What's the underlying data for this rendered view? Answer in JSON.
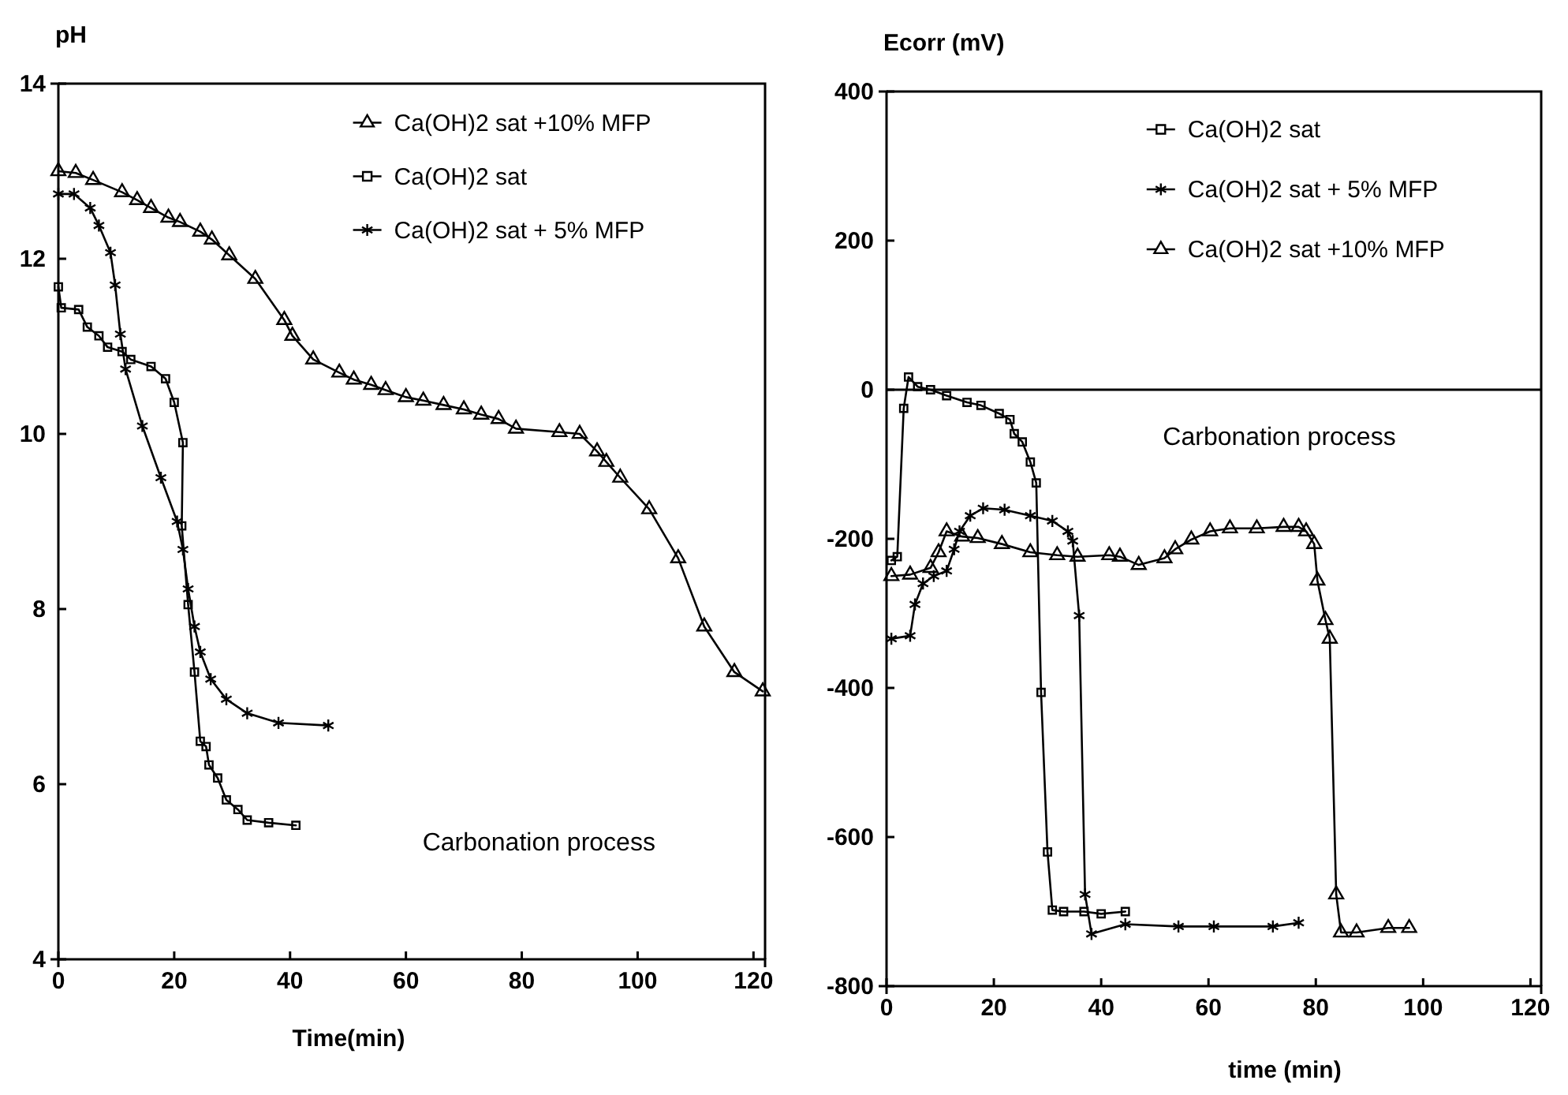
{
  "chart_data": [
    {
      "type": "line",
      "ylabel": "pH",
      "xlabel": "Time(min)",
      "xlim": [
        0,
        122
      ],
      "xticks": [
        0,
        20,
        40,
        60,
        80,
        100,
        120
      ],
      "ylim": [
        4,
        14
      ],
      "yticks": [
        4,
        6,
        8,
        10,
        12,
        14
      ],
      "legend": "top right",
      "grid": false,
      "line_style": "solid",
      "annotations": [
        "Carbonation process"
      ],
      "series": [
        {
          "name": "Ca(OH)2 sat +10% MFP",
          "color": "#000000",
          "marker": "triangle",
          "x": [
            0,
            3,
            6,
            11,
            13.6,
            16,
            19,
            21,
            24.5,
            26.5,
            29.5,
            34,
            39,
            40.4,
            44,
            48.5,
            51,
            54,
            56.5,
            60,
            63,
            66.5,
            70,
            73,
            76,
            79,
            86.5,
            90,
            93,
            94.6,
            97,
            102,
            107,
            111.5,
            116.7,
            121.6
          ],
          "values": [
            13.0,
            12.98,
            12.9,
            12.76,
            12.67,
            12.58,
            12.47,
            12.42,
            12.31,
            12.22,
            12.04,
            11.77,
            11.3,
            11.12,
            10.85,
            10.7,
            10.62,
            10.56,
            10.5,
            10.42,
            10.38,
            10.33,
            10.28,
            10.22,
            10.17,
            10.06,
            10.02,
            10.0,
            9.8,
            9.68,
            9.5,
            9.14,
            8.58,
            7.8,
            7.28,
            7.06
          ]
        },
        {
          "name": "Ca(OH)2 sat",
          "color": "#000000",
          "marker": "square",
          "x": [
            0,
            0.5,
            3.5,
            5,
            7,
            8.5,
            11,
            12.5,
            16,
            18.5,
            20,
            21.5,
            21.3,
            22.4,
            23.5,
            24.5,
            25.5,
            26,
            27.5,
            29,
            31,
            32.6,
            36.3,
            41
          ],
          "values": [
            11.68,
            11.44,
            11.42,
            11.22,
            11.12,
            10.99,
            10.94,
            10.85,
            10.77,
            10.63,
            10.36,
            9.9,
            8.95,
            8.05,
            7.28,
            6.49,
            6.43,
            6.22,
            6.07,
            5.82,
            5.71,
            5.59,
            5.56,
            5.53
          ]
        },
        {
          "name": "Ca(OH)2 sat + 5% MFP",
          "color": "#000000",
          "marker": "cross",
          "x": [
            0,
            2.7,
            5.5,
            7,
            9,
            9.8,
            10.7,
            11.6,
            14.5,
            17.7,
            20.5,
            21.5,
            22.4,
            23.5,
            24.5,
            26.3,
            29,
            32.6,
            38,
            46.6
          ],
          "values": [
            12.74,
            12.74,
            12.58,
            12.38,
            12.07,
            11.7,
            11.14,
            10.74,
            10.09,
            9.5,
            9.0,
            8.68,
            8.23,
            7.8,
            7.51,
            7.2,
            6.97,
            6.81,
            6.7,
            6.67
          ]
        }
      ]
    },
    {
      "type": "line",
      "ylabel": "Ecorr (mV)",
      "xlabel": "time (min)",
      "xlim": [
        0,
        122
      ],
      "xticks": [
        0,
        20,
        40,
        60,
        80,
        100,
        120
      ],
      "ylim": [
        -800,
        400
      ],
      "yticks": [
        -800,
        -600,
        -400,
        -200,
        0,
        200,
        400
      ],
      "legend": "top right",
      "grid": false,
      "line_style": "solid",
      "annotations": [
        "Carbonation process"
      ],
      "ref_lines": [
        {
          "axis": "y",
          "value": 0,
          "color": "#000000"
        }
      ],
      "series": [
        {
          "name": "Ca(OH)2 sat",
          "color": "#000000",
          "marker": "square",
          "x": [
            0.9,
            2,
            3.2,
            4.1,
            5.8,
            8.2,
            11.2,
            15,
            17.6,
            21,
            23,
            23.8,
            25.3,
            26.8,
            27.9,
            28.8,
            30,
            30.9,
            33,
            36.8,
            40,
            44.5
          ],
          "values": [
            -229,
            -224,
            -25,
            17,
            4,
            0,
            -8,
            -17,
            -21,
            -32,
            -40,
            -59,
            -70,
            -97,
            -125,
            -406,
            -620,
            -698,
            -700,
            -700,
            -703,
            -700
          ]
        },
        {
          "name": "Ca(OH)2 sat + 5% MFP",
          "color": "#000000",
          "marker": "cross",
          "x": [
            0.9,
            4.4,
            5.3,
            6.8,
            8.8,
            11.2,
            12.6,
            13.6,
            15.6,
            18,
            22,
            26.8,
            30.9,
            33.8,
            34.7,
            35.9,
            37,
            38.2,
            44.5,
            54.4,
            61,
            72,
            76.8
          ],
          "values": [
            -334,
            -330,
            -288,
            -260,
            -250,
            -243,
            -214,
            -190,
            -169,
            -159,
            -161,
            -169,
            -176,
            -190,
            -203,
            -303,
            -677,
            -730,
            -717,
            -720,
            -720,
            -720,
            -715
          ]
        },
        {
          "name": "Ca(OH)2 sat +10% MFP",
          "color": "#000000",
          "marker": "triangle",
          "x": [
            0.9,
            4.4,
            8.2,
            9.7,
            11.2,
            14.1,
            17,
            21.5,
            26.8,
            31.8,
            35.6,
            41.5,
            43.5,
            47,
            51.8,
            53.8,
            56.8,
            60.3,
            64,
            69,
            74,
            76.8,
            78.2,
            79.7,
            80.3,
            81.8,
            82.6,
            83.8,
            84.7,
            87.6,
            93.5,
            97.4
          ],
          "values": [
            -250,
            -248,
            -239,
            -218,
            -190,
            -197,
            -199,
            -207,
            -218,
            -222,
            -224,
            -222,
            -224,
            -235,
            -226,
            -214,
            -201,
            -190,
            -186,
            -186,
            -184,
            -184,
            -190,
            -207,
            -256,
            -309,
            -334,
            -677,
            -728,
            -728,
            -722,
            -722
          ]
        }
      ]
    }
  ]
}
